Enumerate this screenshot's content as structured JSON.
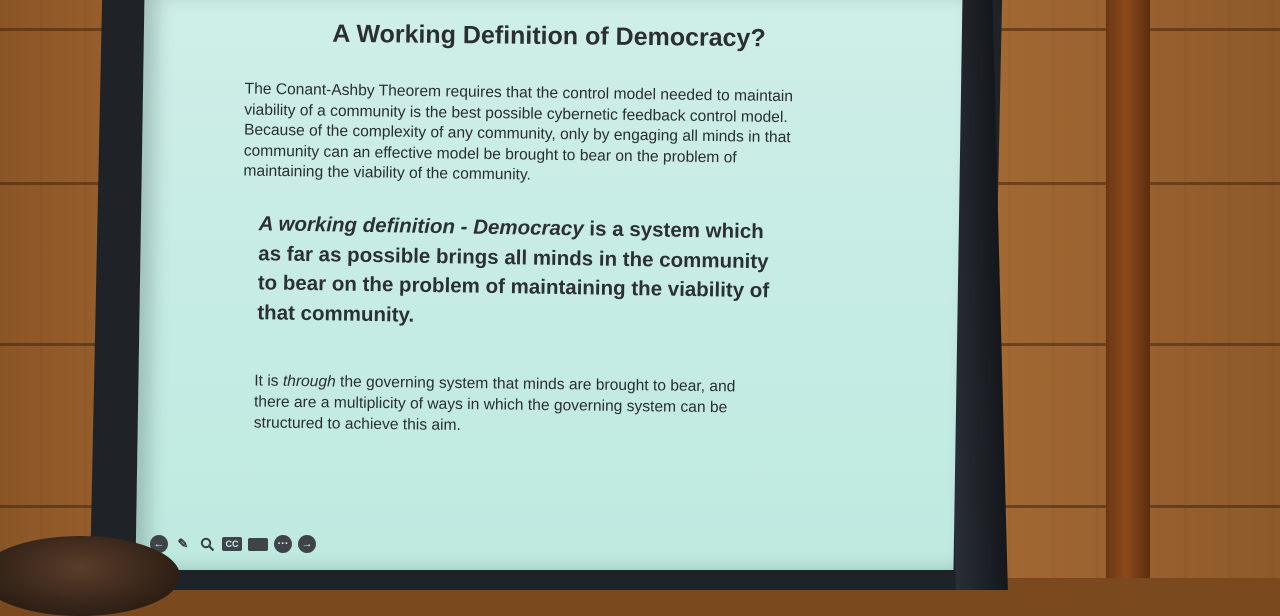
{
  "slide": {
    "title": "A Working Definition of Democracy?",
    "paragraph1_lines": [
      "The Conant-Ashby Theorem requires that the control model needed to maintain",
      "viability of a community is the best possible cybernetic feedback control model.",
      "Because of the complexity of any community, only by engaging all minds in that",
      "community can an effective model be brought to bear on the problem of",
      "maintaining the viability of the community."
    ],
    "definition": {
      "italic_lead": "A working definition - Democracy",
      "line1_rest": " is a system which",
      "line2": "as far as possible brings all minds in the community",
      "line3": "to bear on the problem of maintaining the viability of",
      "line4": "that community."
    },
    "paragraph2": {
      "pre": "It is ",
      "italic": "through",
      "line1_rest": " the governing system that minds are brought to bear, and",
      "line2": "there are a multiplicity of ways in which the governing system can be",
      "line3": "structured to achieve this aim."
    }
  },
  "toolbar": {
    "icons": [
      "back-arrow-icon",
      "pen-icon",
      "zoom-icon",
      "cc-icon",
      "camera-icon",
      "more-icon",
      "forward-arrow-icon"
    ],
    "cc_label": "CC",
    "more_label": "···"
  }
}
